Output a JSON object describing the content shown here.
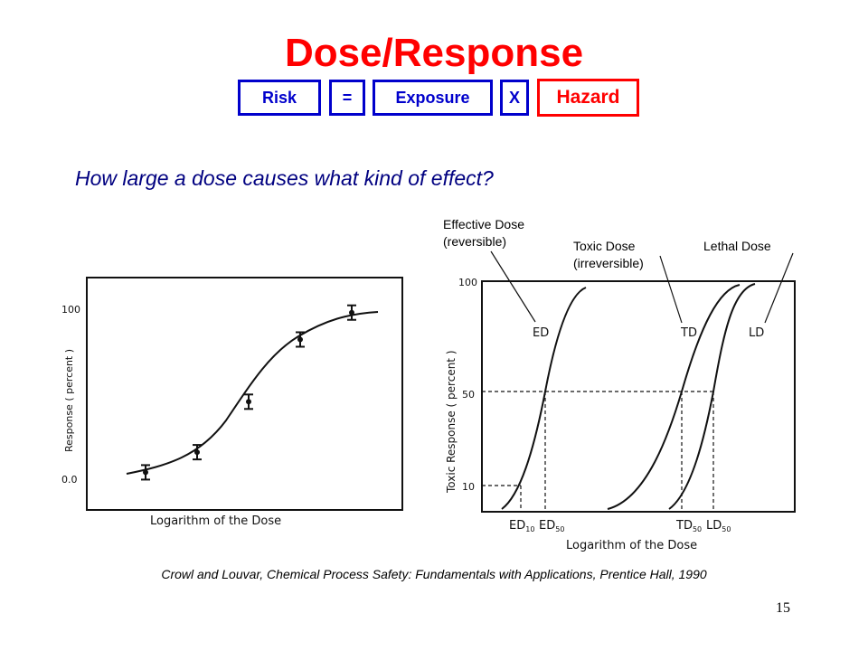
{
  "title": "Dose/Response",
  "formula": {
    "risk": "Risk",
    "equals": "=",
    "exposure": "Exposure",
    "times": "X",
    "hazard": "Hazard"
  },
  "question": "How large a dose causes what kind of effect?",
  "left_plot": {
    "ylabel": "Response ( percent )",
    "xlabel": "Logarithm of the Dose",
    "y_ticks": [
      "100",
      "0.0"
    ],
    "points": [
      {
        "x": 1,
        "y": 3
      },
      {
        "x": 2,
        "y": 15
      },
      {
        "x": 3,
        "y": 45
      },
      {
        "x": 4,
        "y": 82
      },
      {
        "x": 5,
        "y": 98
      }
    ]
  },
  "right_plot": {
    "ylabel": "Toxic Response ( percent )",
    "xlabel": "Logarithm of the Dose",
    "y_ticks": [
      "100",
      "50",
      "10"
    ],
    "curve_labels": {
      "ed": "ED",
      "td": "TD",
      "ld": "LD"
    },
    "x_ticks": {
      "ed10": "ED",
      "ed10_sub": "10",
      "ed50": "ED",
      "ed50_sub": "50",
      "td50": "TD",
      "td50_sub": "50",
      "ld50": "LD",
      "ld50_sub": "50"
    }
  },
  "annotations": {
    "effective_line1": "Effective Dose",
    "effective_line2": "(reversible)",
    "toxic_line1": "Toxic Dose",
    "toxic_line2": "(irreversible)",
    "lethal": "Lethal Dose"
  },
  "citation": "Crowl and Louvar, Chemical Process Safety: Fundamentals with Applications, Prentice Hall, 1990",
  "page_number": "15"
}
